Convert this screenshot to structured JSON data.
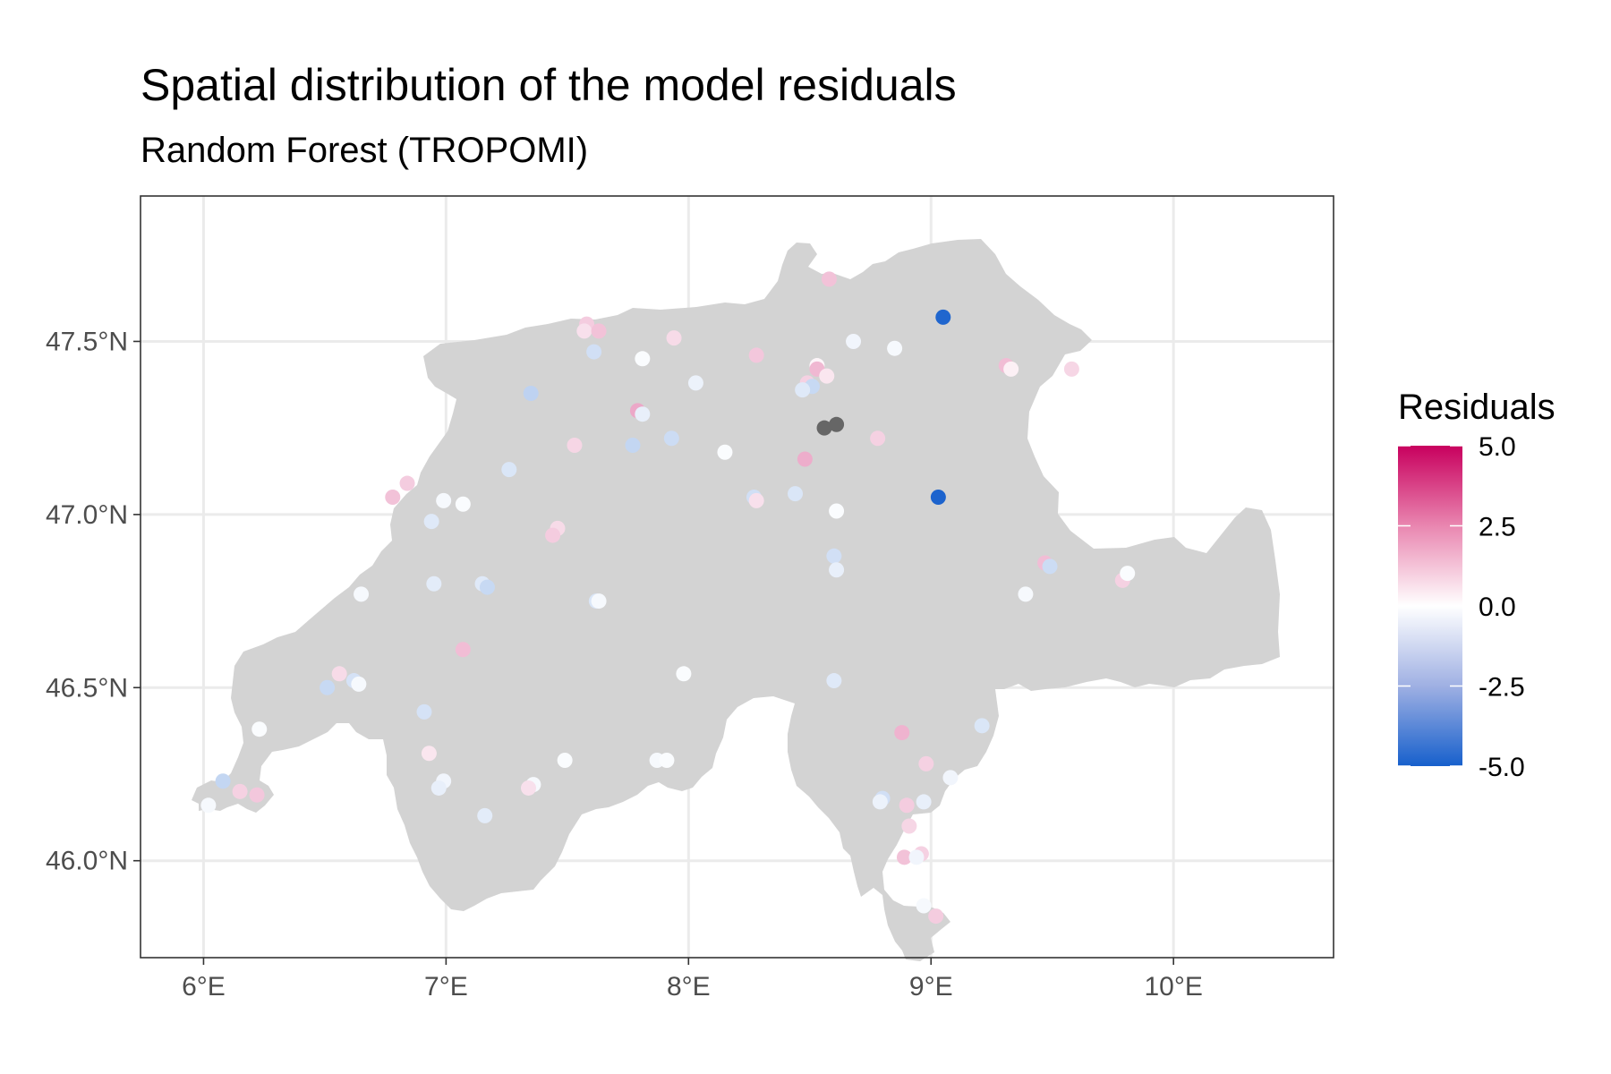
{
  "title": "Spatial distribution of the model residuals",
  "subtitle": "Random Forest (TROPOMI)",
  "map_layers": [
    "country-outline",
    "graticule",
    "station-points"
  ],
  "colors": {
    "land": "#d3d3d3",
    "grid": "#ebebeb",
    "panel_border": "#333333",
    "na_point": "#666666",
    "scale_low": "#1760cc",
    "scale_mid": "#ffffff",
    "scale_high": "#c8005e"
  },
  "chart_data": {
    "type": "scatter",
    "xlabel": "",
    "ylabel": "",
    "xlim": [
      5.74,
      10.66
    ],
    "ylim": [
      45.72,
      47.92
    ],
    "x_ticks": [
      6,
      7,
      8,
      9,
      10
    ],
    "x_tick_labels": [
      "6°E",
      "7°E",
      "8°E",
      "9°E",
      "10°E"
    ],
    "y_ticks": [
      46.0,
      46.5,
      47.0,
      47.5
    ],
    "y_tick_labels": [
      "46.0°N",
      "46.5°N",
      "47.0°N",
      "47.5°N"
    ],
    "grid": true,
    "legend": {
      "title": "Residuals",
      "placement": "right",
      "limits": [
        -5,
        5
      ],
      "breaks": [
        5,
        2.5,
        0,
        -2.5,
        -5
      ],
      "labels": [
        "5.0",
        "2.5",
        "0.0",
        "-2.5",
        "-5.0"
      ]
    },
    "points": [
      {
        "lon": 8.58,
        "lat": 47.68,
        "residual": 1.2
      },
      {
        "lon": 9.05,
        "lat": 47.57,
        "residual": -4.8
      },
      {
        "lon": 7.58,
        "lat": 47.55,
        "residual": 1.0
      },
      {
        "lon": 7.57,
        "lat": 47.53,
        "residual": 0.6
      },
      {
        "lon": 7.63,
        "lat": 47.53,
        "residual": 1.2
      },
      {
        "lon": 7.94,
        "lat": 47.51,
        "residual": 0.7
      },
      {
        "lon": 8.68,
        "lat": 47.5,
        "residual": -0.3
      },
      {
        "lon": 7.61,
        "lat": 47.47,
        "residual": -1.0
      },
      {
        "lon": 8.85,
        "lat": 47.48,
        "residual": -0.2
      },
      {
        "lon": 7.81,
        "lat": 47.45,
        "residual": -0.1
      },
      {
        "lon": 8.28,
        "lat": 47.46,
        "residual": 1.1
      },
      {
        "lon": 8.53,
        "lat": 47.43,
        "residual": 0.2
      },
      {
        "lon": 8.53,
        "lat": 47.42,
        "residual": 1.4
      },
      {
        "lon": 8.57,
        "lat": 47.4,
        "residual": 0.5
      },
      {
        "lon": 8.49,
        "lat": 47.38,
        "residual": 0.9
      },
      {
        "lon": 8.51,
        "lat": 47.37,
        "residual": -1.2
      },
      {
        "lon": 8.47,
        "lat": 47.36,
        "residual": -0.7
      },
      {
        "lon": 9.31,
        "lat": 47.43,
        "residual": 1.3
      },
      {
        "lon": 9.33,
        "lat": 47.42,
        "residual": 0.3
      },
      {
        "lon": 9.58,
        "lat": 47.42,
        "residual": 0.8
      },
      {
        "lon": 8.03,
        "lat": 47.38,
        "residual": -0.4
      },
      {
        "lon": 7.35,
        "lat": 47.35,
        "residual": -1.4
      },
      {
        "lon": 7.79,
        "lat": 47.3,
        "residual": 1.7
      },
      {
        "lon": 7.81,
        "lat": 47.29,
        "residual": -0.5
      },
      {
        "lon": 8.56,
        "lat": 47.25,
        "residual": null
      },
      {
        "lon": 8.61,
        "lat": 47.26,
        "residual": null
      },
      {
        "lon": 8.78,
        "lat": 47.22,
        "residual": 0.9
      },
      {
        "lon": 7.93,
        "lat": 47.22,
        "residual": -1.1
      },
      {
        "lon": 7.53,
        "lat": 47.2,
        "residual": 0.8
      },
      {
        "lon": 7.77,
        "lat": 47.2,
        "residual": -1.3
      },
      {
        "lon": 8.15,
        "lat": 47.18,
        "residual": -0.1
      },
      {
        "lon": 8.48,
        "lat": 47.16,
        "residual": 1.6
      },
      {
        "lon": 7.26,
        "lat": 47.13,
        "residual": -0.8
      },
      {
        "lon": 9.03,
        "lat": 47.05,
        "residual": -4.9
      },
      {
        "lon": 6.84,
        "lat": 47.09,
        "residual": 1.0
      },
      {
        "lon": 6.78,
        "lat": 47.05,
        "residual": 1.2
      },
      {
        "lon": 6.99,
        "lat": 47.04,
        "residual": -0.2
      },
      {
        "lon": 7.07,
        "lat": 47.03,
        "residual": -0.1
      },
      {
        "lon": 8.27,
        "lat": 47.05,
        "residual": -1.0
      },
      {
        "lon": 8.28,
        "lat": 47.04,
        "residual": 0.6
      },
      {
        "lon": 8.44,
        "lat": 47.06,
        "residual": -0.8
      },
      {
        "lon": 8.61,
        "lat": 47.01,
        "residual": -0.1
      },
      {
        "lon": 6.94,
        "lat": 46.98,
        "residual": -0.7
      },
      {
        "lon": 7.46,
        "lat": 46.96,
        "residual": 0.7
      },
      {
        "lon": 7.44,
        "lat": 46.94,
        "residual": 1.0
      },
      {
        "lon": 8.6,
        "lat": 46.88,
        "residual": -1.0
      },
      {
        "lon": 9.47,
        "lat": 46.86,
        "residual": 1.3
      },
      {
        "lon": 9.49,
        "lat": 46.85,
        "residual": -1.1
      },
      {
        "lon": 8.61,
        "lat": 46.84,
        "residual": -0.5
      },
      {
        "lon": 9.79,
        "lat": 46.81,
        "residual": 0.9
      },
      {
        "lon": 9.81,
        "lat": 46.83,
        "residual": -0.1
      },
      {
        "lon": 6.95,
        "lat": 46.8,
        "residual": -0.6
      },
      {
        "lon": 7.15,
        "lat": 46.8,
        "residual": -0.7
      },
      {
        "lon": 7.17,
        "lat": 46.79,
        "residual": -1.2
      },
      {
        "lon": 6.65,
        "lat": 46.77,
        "residual": -0.2
      },
      {
        "lon": 9.39,
        "lat": 46.77,
        "residual": -0.2
      },
      {
        "lon": 7.62,
        "lat": 46.75,
        "residual": -0.8
      },
      {
        "lon": 7.63,
        "lat": 46.75,
        "residual": -0.2
      },
      {
        "lon": 7.07,
        "lat": 46.61,
        "residual": 1.3
      },
      {
        "lon": 6.56,
        "lat": 46.54,
        "residual": 0.7
      },
      {
        "lon": 7.98,
        "lat": 46.54,
        "residual": -0.1
      },
      {
        "lon": 6.62,
        "lat": 46.52,
        "residual": -0.9
      },
      {
        "lon": 6.64,
        "lat": 46.51,
        "residual": -0.2
      },
      {
        "lon": 8.6,
        "lat": 46.52,
        "residual": -0.7
      },
      {
        "lon": 6.51,
        "lat": 46.5,
        "residual": -1.2
      },
      {
        "lon": 6.91,
        "lat": 46.43,
        "residual": -0.9
      },
      {
        "lon": 9.21,
        "lat": 46.39,
        "residual": -0.8
      },
      {
        "lon": 6.23,
        "lat": 46.38,
        "residual": -0.1
      },
      {
        "lon": 8.88,
        "lat": 46.37,
        "residual": 1.5
      },
      {
        "lon": 6.93,
        "lat": 46.31,
        "residual": 0.5
      },
      {
        "lon": 7.49,
        "lat": 46.29,
        "residual": -0.1
      },
      {
        "lon": 7.87,
        "lat": 46.29,
        "residual": -0.2
      },
      {
        "lon": 7.91,
        "lat": 46.29,
        "residual": -0.1
      },
      {
        "lon": 8.98,
        "lat": 46.28,
        "residual": 0.9
      },
      {
        "lon": 9.08,
        "lat": 46.24,
        "residual": -0.3
      },
      {
        "lon": 6.08,
        "lat": 46.23,
        "residual": -1.3
      },
      {
        "lon": 6.99,
        "lat": 46.23,
        "residual": -0.3
      },
      {
        "lon": 6.97,
        "lat": 46.21,
        "residual": -0.5
      },
      {
        "lon": 7.36,
        "lat": 46.22,
        "residual": -0.2
      },
      {
        "lon": 7.34,
        "lat": 46.21,
        "residual": 0.6
      },
      {
        "lon": 6.15,
        "lat": 46.2,
        "residual": 0.9
      },
      {
        "lon": 6.22,
        "lat": 46.19,
        "residual": 1.1
      },
      {
        "lon": 8.8,
        "lat": 46.18,
        "residual": -1.0
      },
      {
        "lon": 8.79,
        "lat": 46.17,
        "residual": -0.4
      },
      {
        "lon": 8.97,
        "lat": 46.17,
        "residual": -0.5
      },
      {
        "lon": 8.9,
        "lat": 46.16,
        "residual": 1.0
      },
      {
        "lon": 6.02,
        "lat": 46.16,
        "residual": -0.2
      },
      {
        "lon": 7.16,
        "lat": 46.13,
        "residual": -0.6
      },
      {
        "lon": 8.91,
        "lat": 46.1,
        "residual": 0.8
      },
      {
        "lon": 8.96,
        "lat": 46.02,
        "residual": 0.9
      },
      {
        "lon": 8.89,
        "lat": 46.01,
        "residual": 1.2
      },
      {
        "lon": 8.94,
        "lat": 46.01,
        "residual": -0.3
      },
      {
        "lon": 8.97,
        "lat": 45.87,
        "residual": -0.2
      },
      {
        "lon": 9.02,
        "lat": 45.84,
        "residual": 1.0
      }
    ]
  }
}
